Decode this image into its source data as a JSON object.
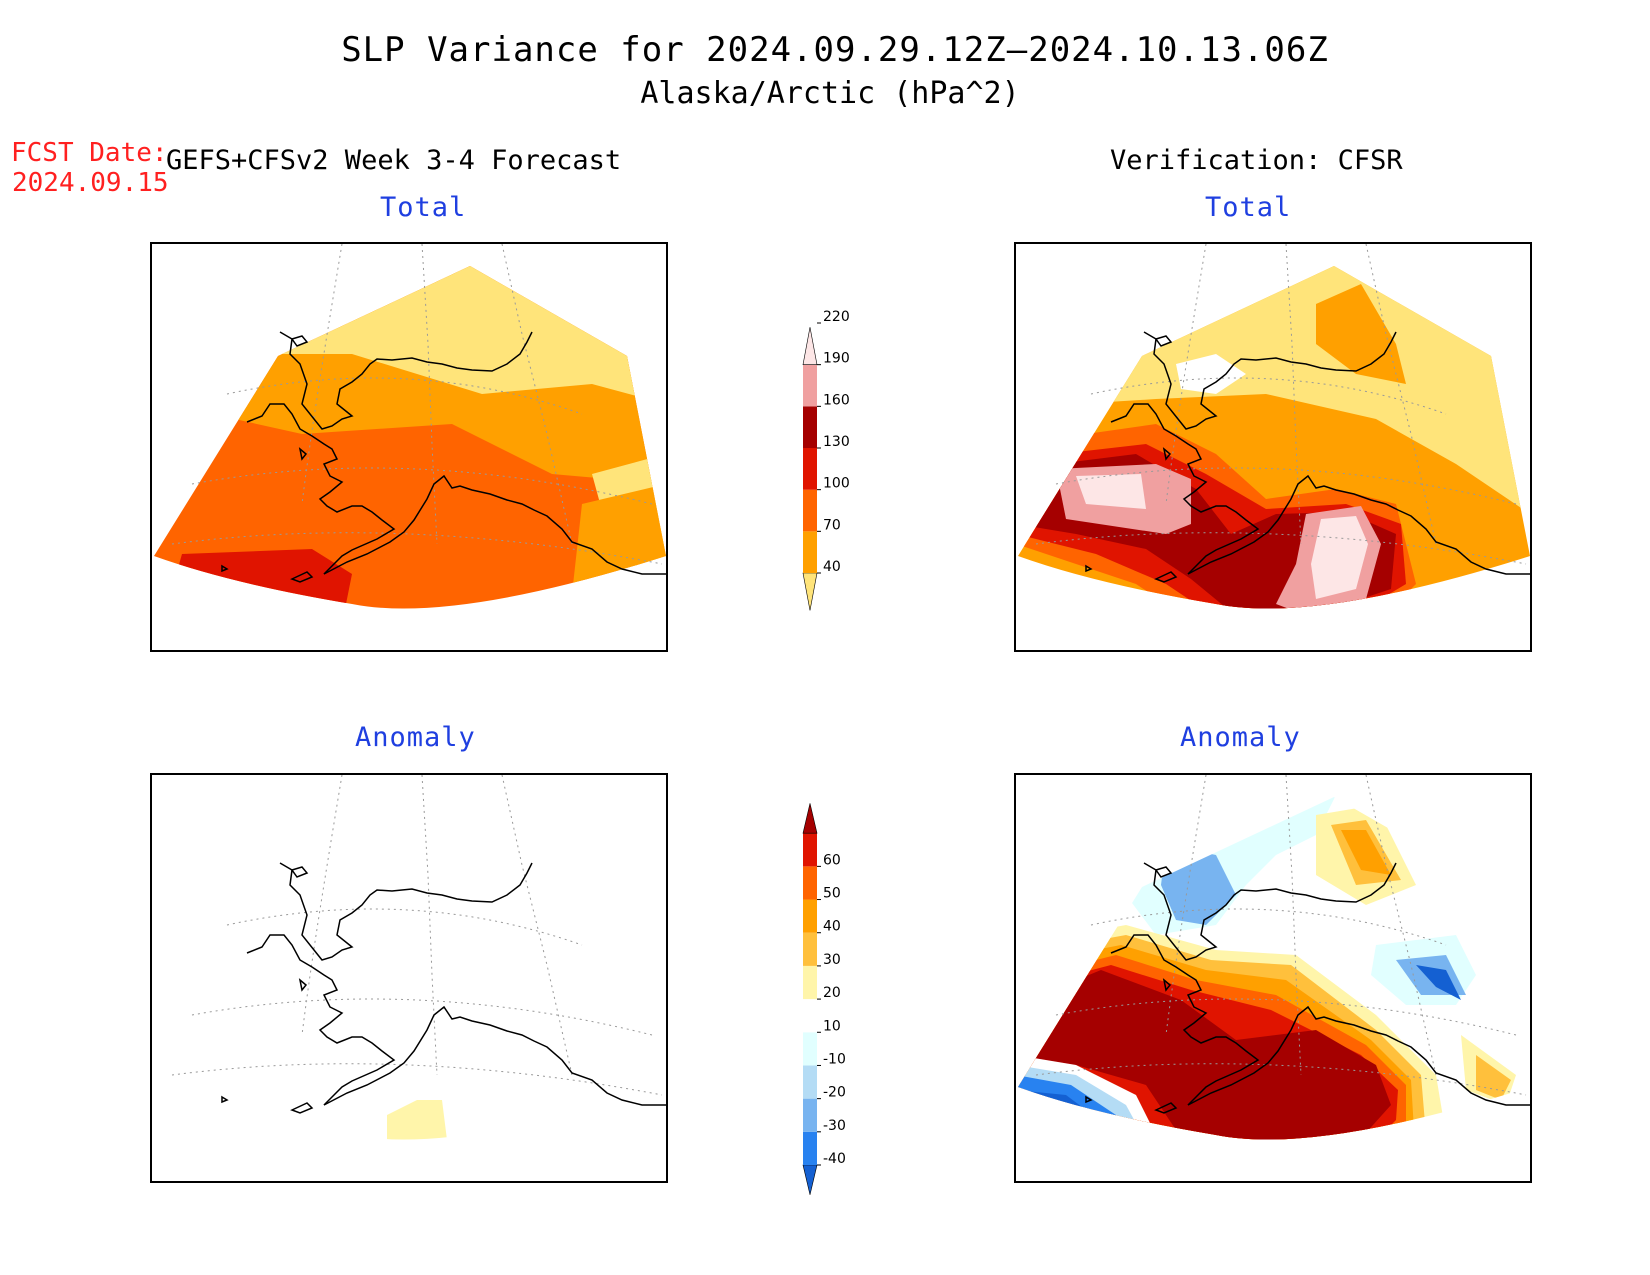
{
  "title": {
    "line1": "SLP Variance for 2024.09.29.12Z–2024.10.13.06Z",
    "line2": "Alaska/Arctic (hPa^2)"
  },
  "forecast": {
    "date_label": "FCST Date:",
    "date_value": "2024.09.15",
    "heading": "GEFS+CFSv2 Week 3-4 Forecast"
  },
  "verification": {
    "heading": "Verification: CFSR"
  },
  "panels": {
    "forecast_total": {
      "title": "Total"
    },
    "forecast_anomaly": {
      "title": "Anomaly"
    },
    "verification_total": {
      "title": "Total"
    },
    "verification_anomaly": {
      "title": "Anomaly"
    }
  },
  "colorbars": {
    "total": {
      "labels": [
        "40",
        "70",
        "100",
        "130",
        "160",
        "190",
        "220"
      ],
      "colors": [
        "#ffe47a",
        "#ffa000",
        "#ff6400",
        "#e01400",
        "#a50000",
        "#f0a0a0",
        "#fde6e6"
      ]
    },
    "anomaly": {
      "labels": [
        "-40",
        "-30",
        "-20",
        "-10",
        "10",
        "20",
        "30",
        "40",
        "50",
        "60"
      ],
      "colors": [
        "#1460d2",
        "#2882f0",
        "#78b4f0",
        "#b4dcf5",
        "#e1ffff",
        "#ffffff",
        "#fff5aa",
        "#ffc03c",
        "#ffa000",
        "#ff6400",
        "#e01400",
        "#a50000"
      ]
    }
  }
}
